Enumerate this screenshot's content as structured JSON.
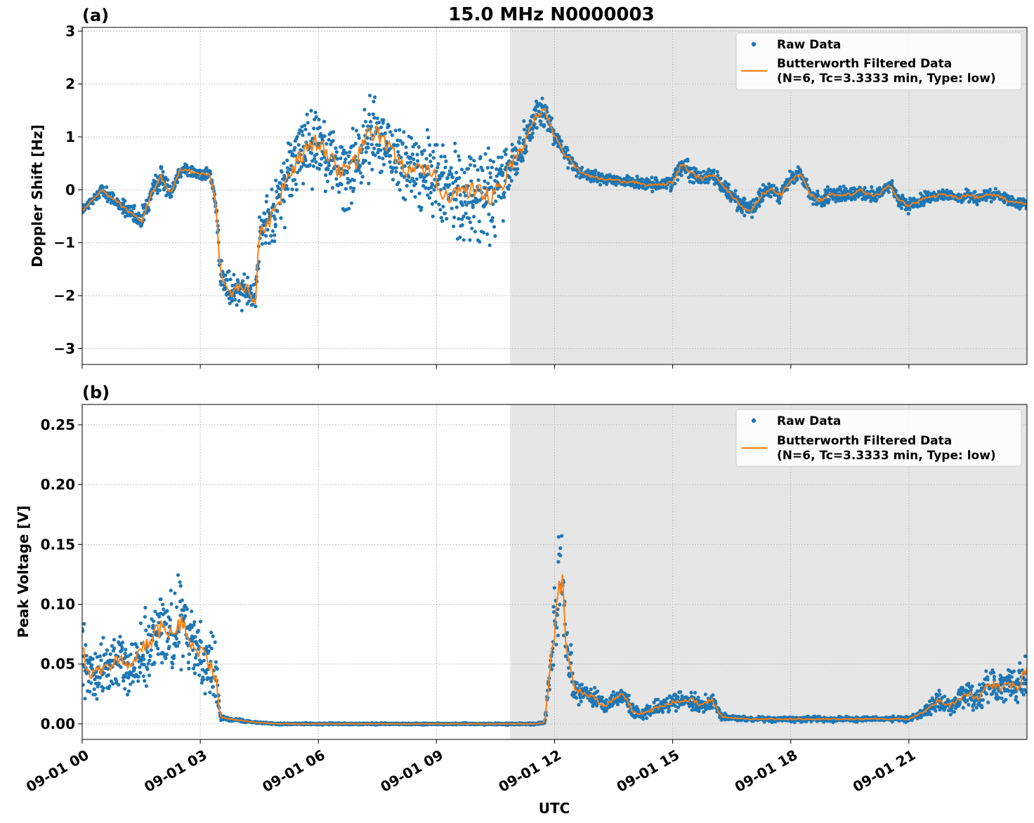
{
  "figure": {
    "title": "15.0 MHz N0000003",
    "xlabel": "UTC",
    "x_tick_labels": [
      "09-01 00",
      "09-01 03",
      "09-01 06",
      "09-01 09",
      "09-01 12",
      "09-01 15",
      "09-01 18",
      "09-01 21"
    ],
    "x_range_hours": [
      0,
      24
    ],
    "shaded_region_hours": [
      10.87,
      24
    ],
    "shade_color": "#e6e6e6",
    "raw_color": "#1f77b4",
    "filtered_color": "#ff7f0e",
    "grid": true
  },
  "chart_data": [
    {
      "type": "scatter",
      "panel_label": "(a)",
      "ylabel": "Doppler Shift [Hz]",
      "ylim": [
        -3.3,
        3.07
      ],
      "y_ticks": [
        3,
        2,
        1,
        0,
        -1,
        -2,
        -3
      ],
      "y_tick_labels": [
        "3",
        "2",
        "1",
        "0",
        "−1",
        "−2",
        "−3"
      ],
      "legend": {
        "placement": "upper right",
        "raw_label": "Raw Data",
        "filtered_label_line1": "Butterworth Filtered Data",
        "filtered_label_line2": "(N=6, Tc=3.3333 min, Type: low)"
      },
      "series": [
        {
          "name": "Raw Data",
          "x_hours": [
            0.0,
            0.25,
            0.5,
            0.75,
            1.0,
            1.25,
            1.5,
            1.75,
            2.0,
            2.25,
            2.5,
            2.75,
            3.0,
            3.25,
            3.4,
            3.5,
            3.75,
            4.0,
            4.25,
            4.4,
            4.5,
            4.75,
            5.0,
            5.25,
            5.5,
            5.75,
            6.0,
            6.25,
            6.5,
            6.75,
            7.0,
            7.25,
            7.5,
            7.75,
            8.0,
            8.25,
            8.5,
            8.75,
            9.0,
            9.25,
            9.5,
            9.75,
            10.0,
            10.25,
            10.5,
            10.75,
            11.0,
            11.25,
            11.5,
            11.75,
            12.0,
            12.25,
            12.5,
            12.75,
            13.0,
            13.25,
            13.5,
            13.75,
            14.0,
            14.25,
            14.5,
            14.75,
            15.0,
            15.25,
            15.5,
            15.75,
            16.0,
            16.25,
            16.5,
            16.75,
            17.0,
            17.25,
            17.5,
            17.75,
            18.0,
            18.25,
            18.5,
            18.75,
            19.0,
            19.25,
            19.5,
            19.75,
            20.0,
            20.25,
            20.5,
            20.75,
            21.0,
            21.25,
            21.5,
            21.75,
            22.0,
            22.25,
            22.5,
            22.75,
            23.0,
            23.25,
            23.5,
            23.75,
            24.0
          ],
          "y_center": [
            -0.4,
            -0.2,
            0.0,
            -0.15,
            -0.3,
            -0.45,
            -0.6,
            -0.1,
            0.25,
            -0.05,
            0.4,
            0.35,
            0.3,
            0.3,
            -0.3,
            -1.5,
            -2.0,
            -1.8,
            -1.9,
            -2.2,
            -0.8,
            -0.6,
            -0.2,
            0.3,
            0.6,
            0.85,
            0.9,
            0.7,
            0.4,
            0.3,
            0.6,
            1.0,
            1.1,
            0.8,
            0.6,
            0.4,
            0.35,
            0.3,
            0.2,
            -0.1,
            0.0,
            -0.1,
            -0.1,
            -0.15,
            -0.1,
            0.2,
            0.6,
            0.9,
            1.4,
            1.5,
            1.0,
            0.7,
            0.45,
            0.3,
            0.25,
            0.2,
            0.2,
            0.15,
            0.15,
            0.1,
            0.1,
            0.1,
            0.15,
            0.5,
            0.3,
            0.2,
            0.3,
            0.1,
            -0.1,
            -0.3,
            -0.4,
            -0.1,
            0.0,
            -0.1,
            0.2,
            0.3,
            -0.1,
            -0.2,
            -0.1,
            -0.1,
            -0.1,
            0.0,
            -0.1,
            -0.1,
            0.1,
            -0.2,
            -0.3,
            -0.2,
            -0.15,
            -0.1,
            -0.1,
            -0.15,
            -0.1,
            -0.15,
            -0.1,
            -0.1,
            -0.2,
            -0.25,
            -0.25
          ],
          "y_spread": [
            0.15,
            0.15,
            0.15,
            0.2,
            0.2,
            0.2,
            0.3,
            0.3,
            0.3,
            0.2,
            0.2,
            0.2,
            0.15,
            0.2,
            0.3,
            0.4,
            0.5,
            0.5,
            0.5,
            0.5,
            0.6,
            0.8,
            0.9,
            1.0,
            1.0,
            1.0,
            1.0,
            1.0,
            1.0,
            1.0,
            1.0,
            1.0,
            1.0,
            1.0,
            1.0,
            1.0,
            1.0,
            1.0,
            1.1,
            1.2,
            1.3,
            1.3,
            1.3,
            1.3,
            1.3,
            1.0,
            0.7,
            0.5,
            0.45,
            0.4,
            0.3,
            0.25,
            0.2,
            0.15,
            0.15,
            0.15,
            0.15,
            0.15,
            0.15,
            0.15,
            0.15,
            0.15,
            0.2,
            0.25,
            0.25,
            0.2,
            0.2,
            0.2,
            0.2,
            0.25,
            0.25,
            0.2,
            0.2,
            0.2,
            0.2,
            0.2,
            0.2,
            0.25,
            0.2,
            0.2,
            0.2,
            0.2,
            0.2,
            0.2,
            0.2,
            0.2,
            0.2,
            0.2,
            0.15,
            0.15,
            0.15,
            0.15,
            0.15,
            0.15,
            0.15,
            0.15,
            0.15,
            0.15,
            0.15
          ]
        },
        {
          "name": "Butterworth Filtered Data",
          "x_hours": [
            0.0,
            0.25,
            0.5,
            0.75,
            1.0,
            1.25,
            1.5,
            1.75,
            2.0,
            2.25,
            2.5,
            2.75,
            3.0,
            3.25,
            3.4,
            3.5,
            3.75,
            4.0,
            4.25,
            4.4,
            4.5,
            4.75,
            5.0,
            5.25,
            5.5,
            5.75,
            6.0,
            6.25,
            6.5,
            6.75,
            7.0,
            7.25,
            7.5,
            7.75,
            8.0,
            8.25,
            8.5,
            8.75,
            9.0,
            9.25,
            9.5,
            9.75,
            10.0,
            10.25,
            10.5,
            10.75,
            11.0,
            11.25,
            11.5,
            11.75,
            12.0,
            12.25,
            12.5,
            12.75,
            13.0,
            13.25,
            13.5,
            13.75,
            14.0,
            14.25,
            14.5,
            14.75,
            15.0,
            15.25,
            15.5,
            15.75,
            16.0,
            16.25,
            16.5,
            16.75,
            17.0,
            17.25,
            17.5,
            17.75,
            18.0,
            18.25,
            18.5,
            18.75,
            19.0,
            19.25,
            19.5,
            19.75,
            20.0,
            20.25,
            20.5,
            20.75,
            21.0,
            21.25,
            21.5,
            21.75,
            22.0,
            22.25,
            22.5,
            22.75,
            23.0,
            23.25,
            23.5,
            23.75,
            24.0
          ],
          "y": [
            -0.4,
            -0.2,
            0.0,
            -0.15,
            -0.3,
            -0.45,
            -0.6,
            -0.1,
            0.25,
            -0.05,
            0.4,
            0.35,
            0.3,
            0.3,
            -0.3,
            -1.5,
            -2.0,
            -1.8,
            -1.9,
            -2.2,
            -0.8,
            -0.6,
            -0.2,
            0.3,
            0.6,
            0.85,
            0.9,
            0.7,
            0.4,
            0.3,
            0.6,
            1.0,
            1.1,
            0.8,
            0.6,
            0.4,
            0.35,
            0.3,
            0.2,
            -0.1,
            0.0,
            -0.1,
            -0.1,
            -0.15,
            -0.1,
            0.2,
            0.6,
            0.9,
            1.4,
            1.5,
            1.0,
            0.7,
            0.45,
            0.3,
            0.25,
            0.2,
            0.2,
            0.15,
            0.15,
            0.1,
            0.1,
            0.1,
            0.15,
            0.5,
            0.3,
            0.2,
            0.3,
            0.1,
            -0.1,
            -0.3,
            -0.4,
            -0.1,
            0.0,
            -0.1,
            0.2,
            0.3,
            -0.1,
            -0.2,
            -0.1,
            -0.1,
            -0.1,
            0.0,
            -0.1,
            -0.1,
            0.1,
            -0.2,
            -0.3,
            -0.2,
            -0.15,
            -0.1,
            -0.1,
            -0.15,
            -0.1,
            -0.15,
            -0.1,
            -0.1,
            -0.2,
            -0.25,
            -0.25
          ]
        }
      ]
    },
    {
      "type": "scatter",
      "panel_label": "(b)",
      "ylabel": "Peak Voltage [V]",
      "ylim": [
        -0.013,
        0.267
      ],
      "y_ticks": [
        0.25,
        0.2,
        0.15,
        0.1,
        0.05,
        0.0
      ],
      "y_tick_labels": [
        "0.25",
        "0.20",
        "0.15",
        "0.10",
        "0.05",
        "0.00"
      ],
      "legend": {
        "placement": "upper right",
        "raw_label": "Raw Data",
        "filtered_label_line1": "Butterworth Filtered Data",
        "filtered_label_line2": "(N=6, Tc=3.3333 min, Type: low)"
      },
      "series": [
        {
          "name": "Raw Data",
          "x_hours": [
            0.0,
            0.25,
            0.5,
            0.75,
            1.0,
            1.25,
            1.5,
            1.75,
            2.0,
            2.25,
            2.5,
            2.75,
            3.0,
            3.25,
            3.4,
            3.5,
            3.75,
            4.0,
            4.25,
            4.5,
            5.0,
            6.0,
            7.0,
            8.0,
            9.0,
            10.0,
            10.5,
            11.0,
            11.5,
            11.75,
            11.9,
            12.0,
            12.1,
            12.2,
            12.3,
            12.5,
            12.75,
            13.0,
            13.25,
            13.5,
            13.75,
            14.0,
            14.25,
            14.5,
            14.75,
            15.0,
            15.25,
            15.5,
            15.75,
            16.0,
            16.25,
            16.5,
            17.0,
            17.5,
            18.0,
            18.5,
            19.0,
            19.5,
            20.0,
            20.5,
            21.0,
            21.25,
            21.5,
            21.75,
            22.0,
            22.25,
            22.5,
            22.75,
            23.0,
            23.25,
            23.5,
            23.75,
            24.0
          ],
          "y_center": [
            0.06,
            0.04,
            0.045,
            0.05,
            0.055,
            0.045,
            0.06,
            0.07,
            0.08,
            0.075,
            0.085,
            0.07,
            0.06,
            0.05,
            0.04,
            0.006,
            0.004,
            0.003,
            0.002,
            0.001,
            0.0,
            0.0,
            0.0,
            0.0,
            0.0,
            0.0,
            0.0,
            0.0,
            0.0,
            0.001,
            0.05,
            0.08,
            0.11,
            0.12,
            0.06,
            0.03,
            0.025,
            0.022,
            0.015,
            0.02,
            0.025,
            0.01,
            0.008,
            0.012,
            0.015,
            0.018,
            0.02,
            0.02,
            0.015,
            0.02,
            0.006,
            0.005,
            0.004,
            0.004,
            0.004,
            0.004,
            0.004,
            0.004,
            0.004,
            0.004,
            0.004,
            0.008,
            0.012,
            0.02,
            0.015,
            0.02,
            0.025,
            0.02,
            0.035,
            0.03,
            0.035,
            0.03,
            0.045
          ],
          "y_spread": [
            0.04,
            0.03,
            0.03,
            0.03,
            0.03,
            0.03,
            0.04,
            0.05,
            0.05,
            0.05,
            0.05,
            0.04,
            0.04,
            0.04,
            0.04,
            0.003,
            0.002,
            0.002,
            0.001,
            0.001,
            0.001,
            0.001,
            0.001,
            0.001,
            0.001,
            0.001,
            0.001,
            0.001,
            0.001,
            0.001,
            0.03,
            0.05,
            0.06,
            0.06,
            0.04,
            0.015,
            0.012,
            0.012,
            0.01,
            0.01,
            0.012,
            0.008,
            0.006,
            0.008,
            0.01,
            0.01,
            0.01,
            0.01,
            0.01,
            0.01,
            0.004,
            0.003,
            0.003,
            0.003,
            0.003,
            0.003,
            0.003,
            0.003,
            0.003,
            0.003,
            0.003,
            0.005,
            0.008,
            0.012,
            0.01,
            0.012,
            0.015,
            0.015,
            0.02,
            0.02,
            0.02,
            0.02,
            0.03
          ]
        },
        {
          "name": "Butterworth Filtered Data",
          "x_hours": [
            0.0,
            0.25,
            0.5,
            0.75,
            1.0,
            1.25,
            1.5,
            1.75,
            2.0,
            2.25,
            2.5,
            2.75,
            3.0,
            3.25,
            3.4,
            3.5,
            3.75,
            4.0,
            4.25,
            4.5,
            5.0,
            6.0,
            7.0,
            8.0,
            9.0,
            10.0,
            10.5,
            11.0,
            11.5,
            11.75,
            11.9,
            12.0,
            12.1,
            12.2,
            12.3,
            12.5,
            12.75,
            13.0,
            13.25,
            13.5,
            13.75,
            14.0,
            14.25,
            14.5,
            14.75,
            15.0,
            15.25,
            15.5,
            15.75,
            16.0,
            16.25,
            16.5,
            17.0,
            17.5,
            18.0,
            18.5,
            19.0,
            19.5,
            20.0,
            20.5,
            21.0,
            21.25,
            21.5,
            21.75,
            22.0,
            22.25,
            22.5,
            22.75,
            23.0,
            23.25,
            23.5,
            23.75,
            24.0
          ],
          "y": [
            0.06,
            0.04,
            0.045,
            0.05,
            0.055,
            0.045,
            0.06,
            0.07,
            0.08,
            0.075,
            0.085,
            0.07,
            0.06,
            0.05,
            0.04,
            0.006,
            0.004,
            0.003,
            0.002,
            0.001,
            0.0,
            0.0,
            0.0,
            0.0,
            0.0,
            0.0,
            0.0,
            0.0,
            0.0,
            0.001,
            0.05,
            0.08,
            0.11,
            0.12,
            0.06,
            0.03,
            0.025,
            0.022,
            0.015,
            0.02,
            0.025,
            0.01,
            0.008,
            0.012,
            0.015,
            0.018,
            0.02,
            0.02,
            0.015,
            0.02,
            0.006,
            0.005,
            0.004,
            0.004,
            0.004,
            0.004,
            0.004,
            0.004,
            0.004,
            0.004,
            0.004,
            0.008,
            0.012,
            0.02,
            0.015,
            0.02,
            0.025,
            0.02,
            0.035,
            0.03,
            0.035,
            0.03,
            0.045
          ]
        }
      ]
    }
  ]
}
